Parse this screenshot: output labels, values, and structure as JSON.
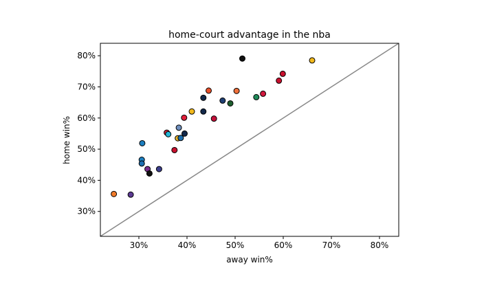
{
  "chart_data": {
    "type": "scatter",
    "title": "home-court advantage in the nba",
    "xlabel": "away win%",
    "ylabel": "home win%",
    "xlim": [
      0.22,
      0.84
    ],
    "ylim": [
      0.22,
      0.84
    ],
    "xticks": [
      0.3,
      0.4,
      0.5,
      0.6,
      0.7,
      0.8
    ],
    "yticks": [
      0.3,
      0.4,
      0.5,
      0.6,
      0.7,
      0.8
    ],
    "xtick_labels": [
      "30%",
      "40%",
      "50%",
      "60%",
      "70%",
      "80%"
    ],
    "ytick_labels": [
      "30%",
      "40%",
      "50%",
      "60%",
      "70%",
      "80%"
    ],
    "grid": false,
    "reference_line": {
      "from": [
        0.22,
        0.22
      ],
      "to": [
        0.84,
        0.84
      ],
      "color": "#888888"
    },
    "points": [
      {
        "x": 0.248,
        "y": 0.356,
        "color": "#f07a2a"
      },
      {
        "x": 0.283,
        "y": 0.354,
        "color": "#5c3a93"
      },
      {
        "x": 0.307,
        "y": 0.519,
        "color": "#1d7fc0"
      },
      {
        "x": 0.306,
        "y": 0.466,
        "color": "#1d7fc0"
      },
      {
        "x": 0.306,
        "y": 0.454,
        "color": "#1d6fb0"
      },
      {
        "x": 0.318,
        "y": 0.436,
        "color": "#7a2e8c"
      },
      {
        "x": 0.322,
        "y": 0.422,
        "color": "#111111"
      },
      {
        "x": 0.342,
        "y": 0.436,
        "color": "#3d3f8c"
      },
      {
        "x": 0.358,
        "y": 0.553,
        "color": "#d2283e"
      },
      {
        "x": 0.361,
        "y": 0.548,
        "color": "#25b6d6"
      },
      {
        "x": 0.374,
        "y": 0.497,
        "color": "#c8102e"
      },
      {
        "x": 0.381,
        "y": 0.535,
        "color": "#e3b02a"
      },
      {
        "x": 0.383,
        "y": 0.569,
        "color": "#6f8fbd"
      },
      {
        "x": 0.387,
        "y": 0.536,
        "color": "#1d6fb0"
      },
      {
        "x": 0.394,
        "y": 0.601,
        "color": "#e21e3a"
      },
      {
        "x": 0.395,
        "y": 0.55,
        "color": "#13294b"
      },
      {
        "x": 0.41,
        "y": 0.621,
        "color": "#f2b91c"
      },
      {
        "x": 0.434,
        "y": 0.665,
        "color": "#13294b"
      },
      {
        "x": 0.434,
        "y": 0.621,
        "color": "#13294b"
      },
      {
        "x": 0.445,
        "y": 0.688,
        "color": "#e8502a"
      },
      {
        "x": 0.456,
        "y": 0.598,
        "color": "#c4103a"
      },
      {
        "x": 0.474,
        "y": 0.656,
        "color": "#1f3f73"
      },
      {
        "x": 0.49,
        "y": 0.647,
        "color": "#1e5e2e"
      },
      {
        "x": 0.503,
        "y": 0.687,
        "color": "#f0703a"
      },
      {
        "x": 0.515,
        "y": 0.791,
        "color": "#111111"
      },
      {
        "x": 0.544,
        "y": 0.667,
        "color": "#1f8a5a"
      },
      {
        "x": 0.558,
        "y": 0.678,
        "color": "#d2183e"
      },
      {
        "x": 0.591,
        "y": 0.72,
        "color": "#c8102e"
      },
      {
        "x": 0.599,
        "y": 0.742,
        "color": "#c8102e"
      },
      {
        "x": 0.66,
        "y": 0.785,
        "color": "#f2b91c"
      }
    ]
  }
}
